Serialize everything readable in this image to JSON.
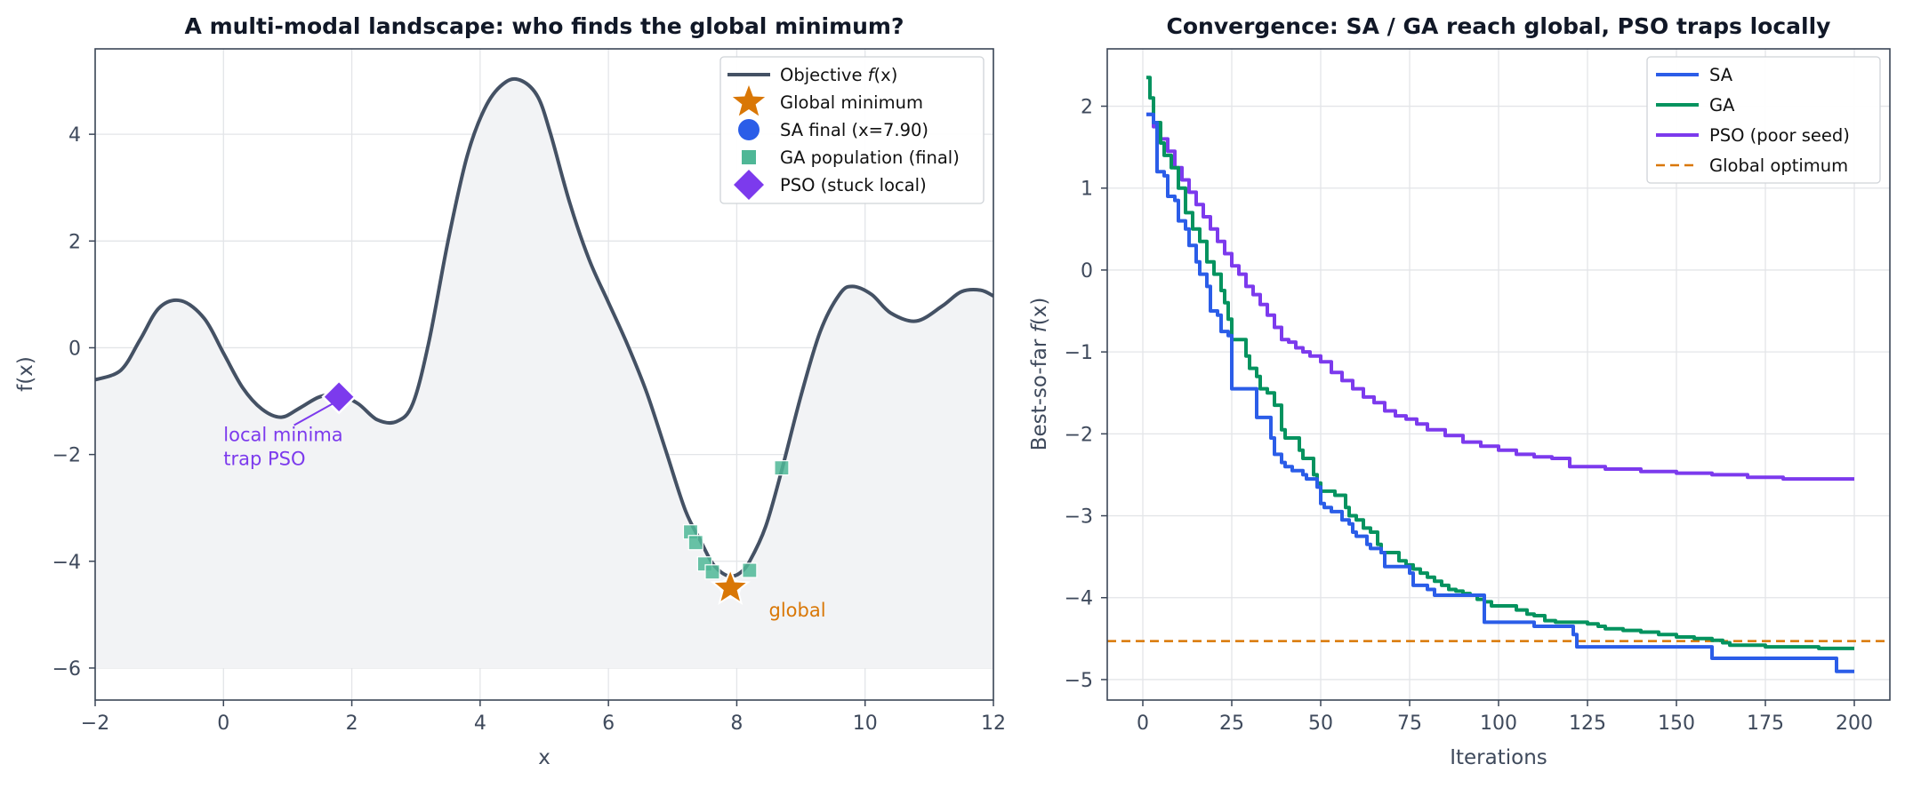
{
  "chart_data": [
    {
      "type": "line",
      "title": "A multi-modal landscape: who finds the global minimum?",
      "xlabel": "x",
      "ylabel": "f(x)",
      "xlim": [
        -2,
        12
      ],
      "ylim": [
        -6.6,
        5.6
      ],
      "xticks": [
        -2,
        0,
        2,
        4,
        6,
        8,
        10,
        12
      ],
      "xtick_labels": [
        "−2",
        "0",
        "2",
        "4",
        "6",
        "8",
        "10",
        "12"
      ],
      "yticks": [
        -6,
        -4,
        -2,
        0,
        2,
        4
      ],
      "ytick_labels": [
        "−6",
        "−4",
        "−2",
        "0",
        "2",
        "4"
      ],
      "grid": true,
      "legend_position": "top-right",
      "colors": {
        "objective": "#445164",
        "fill": "#f2f3f5",
        "global": "#d97706",
        "sa": "#2b5de8",
        "ga": "#4fb796",
        "pso": "#7c3aed"
      },
      "series": [
        {
          "name": "Objective f(x)",
          "legend_label": "Objective ",
          "legend_italic": "f",
          "legend_suffix": "(x)",
          "x": [
            -2.0,
            -1.6,
            -1.3,
            -1.0,
            -0.66,
            -0.3,
            0.0,
            0.3,
            0.6,
            0.9,
            1.2,
            1.5,
            1.8,
            2.1,
            2.4,
            2.7,
            2.95,
            3.2,
            3.5,
            3.8,
            4.1,
            4.4,
            4.65,
            4.9,
            5.1,
            5.4,
            5.7,
            6.0,
            6.3,
            6.6,
            6.9,
            7.2,
            7.45,
            7.6,
            7.75,
            7.9,
            8.05,
            8.2,
            8.45,
            8.7,
            9.0,
            9.3,
            9.6,
            9.8,
            10.1,
            10.4,
            10.8,
            11.2,
            11.5,
            11.8,
            12.0
          ],
          "y": [
            -0.6,
            -0.42,
            0.15,
            0.75,
            0.88,
            0.55,
            -0.1,
            -0.75,
            -1.15,
            -1.3,
            -1.12,
            -0.92,
            -0.88,
            -1.05,
            -1.35,
            -1.38,
            -1.05,
            0.1,
            2.0,
            3.6,
            4.55,
            4.98,
            5.0,
            4.7,
            4.0,
            2.7,
            1.65,
            0.85,
            0.05,
            -0.85,
            -1.95,
            -3.05,
            -3.65,
            -4.0,
            -4.2,
            -4.28,
            -4.22,
            -4.0,
            -3.35,
            -2.3,
            -0.9,
            0.3,
            1.0,
            1.15,
            1.0,
            0.65,
            0.5,
            0.78,
            1.05,
            1.08,
            0.97
          ]
        }
      ],
      "points": [
        {
          "name": "Global minimum",
          "x": 7.9,
          "y": -4.5,
          "marker": "star",
          "color": "#d97706"
        },
        {
          "name": "SA final (x=7.90)",
          "x": 7.9,
          "y": -4.5,
          "marker": "circle",
          "color": "#2b5de8"
        },
        {
          "name": "PSO (stuck local)",
          "x": 1.8,
          "y": -0.92,
          "marker": "diamond",
          "color": "#7c3aed"
        }
      ],
      "ga_population": {
        "name": "GA population (final)",
        "x": [
          7.28,
          7.36,
          7.5,
          7.62,
          8.2,
          8.7
        ],
        "y": [
          -3.45,
          -3.65,
          -4.05,
          -4.2,
          -4.17,
          -2.25
        ]
      },
      "legend": [
        {
          "label": "Objective f(x)",
          "marker": "line",
          "color": "#445164"
        },
        {
          "label": "Global minimum",
          "marker": "star",
          "color": "#d97706"
        },
        {
          "label": "SA final (x=7.90)",
          "marker": "circle",
          "color": "#2b5de8"
        },
        {
          "label": "GA population (final)",
          "marker": "square",
          "color": "#4fb796"
        },
        {
          "label": "PSO (stuck local)",
          "marker": "diamond",
          "color": "#7c3aed"
        }
      ],
      "annotations": [
        {
          "text": [
            "local minima",
            "trap PSO"
          ],
          "x": 0.0,
          "y": -1.75,
          "color": "#7c3aed",
          "points_to": [
            1.7,
            -1.05
          ]
        },
        {
          "text": [
            "global"
          ],
          "x": 8.5,
          "y": -4.9,
          "color": "#d97706"
        }
      ]
    },
    {
      "type": "line",
      "title": "Convergence: SA / GA reach global, PSO traps locally",
      "xlabel": "Iterations",
      "ylabel": "Best-so-far f(x)",
      "ylabel_parts": {
        "prefix": "Best-so-far ",
        "italic": "f",
        "suffix": "(x)"
      },
      "xlim": [
        -10,
        210
      ],
      "ylim": [
        -5.25,
        2.7
      ],
      "xticks": [
        0,
        25,
        50,
        75,
        100,
        125,
        150,
        175,
        200
      ],
      "xtick_labels": [
        "0",
        "25",
        "50",
        "75",
        "100",
        "125",
        "150",
        "175",
        "200"
      ],
      "yticks": [
        -5,
        -4,
        -3,
        -2,
        -1,
        0,
        1,
        2
      ],
      "ytick_labels": [
        "−5",
        "−4",
        "−3",
        "−2",
        "−1",
        "0",
        "1",
        "2"
      ],
      "grid": true,
      "legend_position": "top-right",
      "series": [
        {
          "name": "SA",
          "color": "#2b5de8",
          "x": [
            1,
            3,
            4,
            6,
            7,
            9,
            10,
            12,
            13,
            15,
            16,
            18,
            19,
            21,
            22,
            24,
            25,
            31,
            32,
            35,
            36,
            37,
            38,
            39,
            40,
            42,
            43,
            45,
            46,
            47,
            49,
            50,
            51,
            53,
            55,
            56,
            58,
            59,
            60,
            62,
            63,
            64,
            65,
            67,
            68,
            70,
            73,
            75,
            76,
            79,
            80,
            82,
            87,
            93,
            96,
            98,
            108,
            110,
            113,
            121,
            122,
            124,
            140,
            159,
            160,
            170,
            180,
            194,
            195,
            200
          ],
          "y": [
            1.9,
            1.8,
            1.2,
            1.15,
            0.9,
            0.85,
            0.6,
            0.5,
            0.3,
            0.1,
            -0.05,
            -0.2,
            -0.5,
            -0.55,
            -0.75,
            -0.8,
            -1.45,
            -1.45,
            -1.8,
            -1.8,
            -2.05,
            -2.25,
            -2.25,
            -2.35,
            -2.4,
            -2.45,
            -2.45,
            -2.5,
            -2.55,
            -2.55,
            -2.65,
            -2.85,
            -2.9,
            -2.95,
            -2.95,
            -3.05,
            -3.1,
            -3.2,
            -3.25,
            -3.25,
            -3.35,
            -3.4,
            -3.4,
            -3.45,
            -3.62,
            -3.62,
            -3.62,
            -3.7,
            -3.85,
            -3.85,
            -3.9,
            -3.97,
            -3.97,
            -3.97,
            -4.3,
            -4.3,
            -4.3,
            -4.35,
            -4.35,
            -4.45,
            -4.6,
            -4.6,
            -4.6,
            -4.6,
            -4.74,
            -4.74,
            -4.74,
            -4.74,
            -4.9,
            -4.9
          ]
        },
        {
          "name": "GA",
          "color": "#05935f",
          "x": [
            1,
            2,
            3,
            5,
            6,
            8,
            10,
            12,
            14,
            16,
            18,
            20,
            22,
            23,
            24,
            25,
            26,
            27,
            29,
            30,
            32,
            33,
            35,
            37,
            39,
            40,
            42,
            44,
            45,
            46,
            48,
            49,
            50,
            52,
            54,
            56,
            57,
            58,
            60,
            62,
            64,
            66,
            67,
            68,
            70,
            72,
            74,
            76,
            78,
            80,
            82,
            84,
            86,
            88,
            90,
            92,
            94,
            96,
            98,
            100,
            105,
            108,
            110,
            113,
            116,
            120,
            125,
            128,
            130,
            135,
            140,
            145,
            150,
            155,
            160,
            163,
            165,
            170,
            175,
            180,
            185,
            190,
            195,
            200
          ],
          "y": [
            2.35,
            2.1,
            1.8,
            1.55,
            1.4,
            1.25,
            1.0,
            0.7,
            0.5,
            0.35,
            0.1,
            -0.05,
            -0.25,
            -0.4,
            -0.6,
            -0.85,
            -0.85,
            -0.85,
            -1.05,
            -1.2,
            -1.3,
            -1.45,
            -1.5,
            -1.65,
            -1.95,
            -2.05,
            -2.05,
            -2.2,
            -2.3,
            -2.3,
            -2.5,
            -2.6,
            -2.7,
            -2.7,
            -2.75,
            -2.75,
            -2.9,
            -3.0,
            -3.05,
            -3.15,
            -3.2,
            -3.35,
            -3.45,
            -3.45,
            -3.45,
            -3.55,
            -3.6,
            -3.65,
            -3.7,
            -3.75,
            -3.8,
            -3.85,
            -3.9,
            -3.92,
            -3.95,
            -3.97,
            -4.02,
            -4.05,
            -4.1,
            -4.1,
            -4.15,
            -4.2,
            -4.22,
            -4.28,
            -4.3,
            -4.3,
            -4.32,
            -4.35,
            -4.38,
            -4.4,
            -4.42,
            -4.45,
            -4.48,
            -4.5,
            -4.52,
            -4.55,
            -4.58,
            -4.58,
            -4.6,
            -4.6,
            -4.6,
            -4.62,
            -4.62,
            -4.62
          ]
        },
        {
          "name": "PSO (poor seed)",
          "color": "#7c3aed",
          "x": [
            1,
            3,
            5,
            7,
            9,
            11,
            13,
            15,
            17,
            19,
            21,
            23,
            25,
            27,
            29,
            31,
            33,
            35,
            37,
            39,
            41,
            43,
            45,
            47,
            50,
            53,
            56,
            59,
            62,
            65,
            68,
            71,
            74,
            77,
            80,
            85,
            90,
            95,
            100,
            105,
            110,
            115,
            120,
            130,
            140,
            150,
            160,
            170,
            180,
            190,
            200
          ],
          "y": [
            1.9,
            1.75,
            1.6,
            1.45,
            1.25,
            1.1,
            0.95,
            0.8,
            0.65,
            0.5,
            0.35,
            0.2,
            0.05,
            -0.05,
            -0.2,
            -0.3,
            -0.42,
            -0.55,
            -0.7,
            -0.85,
            -0.88,
            -0.95,
            -1.0,
            -1.05,
            -1.12,
            -1.25,
            -1.35,
            -1.45,
            -1.55,
            -1.62,
            -1.72,
            -1.78,
            -1.82,
            -1.88,
            -1.95,
            -2.02,
            -2.1,
            -2.15,
            -2.2,
            -2.25,
            -2.28,
            -2.3,
            -2.4,
            -2.43,
            -2.46,
            -2.48,
            -2.5,
            -2.53,
            -2.55,
            -2.55,
            -2.55
          ]
        },
        {
          "name": "Global optimum",
          "color": "#d97706",
          "dashed": true,
          "y_const": -4.53
        }
      ]
    }
  ]
}
